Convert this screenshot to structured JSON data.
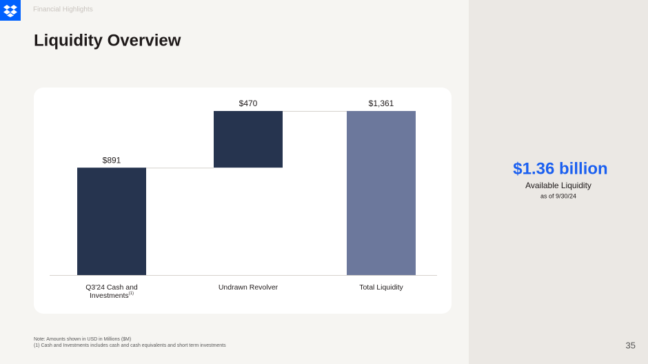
{
  "header": {
    "section": "Financial Highlights",
    "title": "Liquidity Overview"
  },
  "chart_data": {
    "type": "waterfall",
    "categories": [
      "Q3'24 Cash and Investments",
      "Undrawn Revolver",
      "Total Liquidity"
    ],
    "category_footnote": "(1)",
    "values": [
      891,
      470,
      1361
    ],
    "value_labels": [
      "$891",
      "$470",
      "$1,361"
    ],
    "measure": [
      "absolute",
      "relative",
      "total"
    ],
    "colors": [
      "#26344f",
      "#26344f",
      "#6c789c"
    ],
    "ylim": [
      0,
      1361
    ],
    "connectors": true
  },
  "highlight": {
    "value": "$1.36 billion",
    "label": "Available Liquidity",
    "date": "as of 9/30/24"
  },
  "notes": [
    "Note: Amounts shown in USD in Millions ($M)",
    "(1) Cash and Investments includes cash and cash equivalents and short term investments"
  ],
  "page_number": 35
}
